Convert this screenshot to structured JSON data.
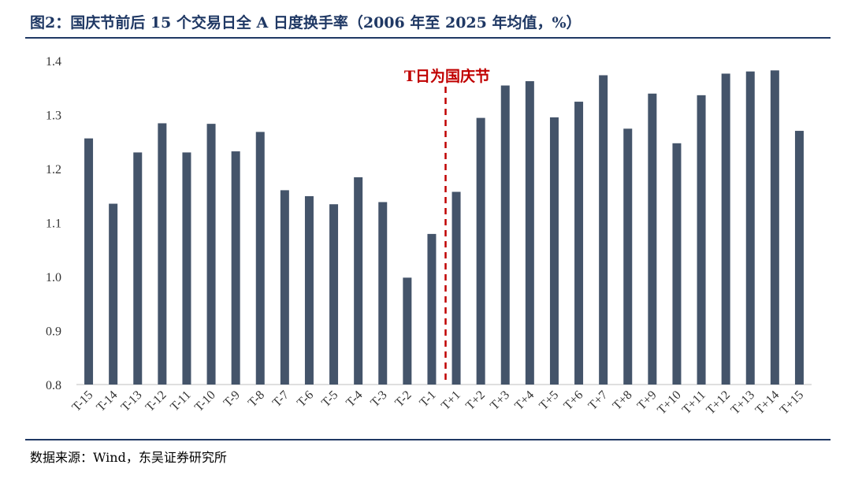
{
  "header": {
    "title": "图2：国庆节前后 15 个交易日全 A 日度换手率（2006 年至 2025 年均值，%）"
  },
  "footer": {
    "source": "数据来源：Wind，东吴证券研究所"
  },
  "chart_data": {
    "type": "bar",
    "categories": [
      "T-15",
      "T-14",
      "T-13",
      "T-12",
      "T-11",
      "T-10",
      "T-9",
      "T-8",
      "T-7",
      "T-6",
      "T-5",
      "T-4",
      "T-3",
      "T-2",
      "T-1",
      "T+1",
      "T+2",
      "T+3",
      "T+4",
      "T+5",
      "T+6",
      "T+7",
      "T+8",
      "T+9",
      "T+10",
      "T+11",
      "T+12",
      "T+13",
      "T+14",
      "T+15"
    ],
    "values": [
      1.256,
      1.135,
      1.23,
      1.284,
      1.23,
      1.283,
      1.232,
      1.268,
      1.16,
      1.149,
      1.134,
      1.184,
      1.138,
      0.998,
      1.079,
      1.157,
      1.294,
      1.354,
      1.362,
      1.295,
      1.324,
      1.373,
      1.274,
      1.339,
      1.247,
      1.336,
      1.376,
      1.38,
      1.382,
      1.27
    ],
    "ylim": [
      0.8,
      1.4
    ],
    "yticks": [
      "0.8",
      "0.9",
      "1.0",
      "1.1",
      "1.2",
      "1.3",
      "1.4"
    ],
    "title": "",
    "xlabel": "",
    "ylabel": "",
    "bar_color": "#44546a",
    "annotation": {
      "text": "T日为国庆节",
      "color": "#c00000",
      "after_category": "T-1"
    },
    "grid": false
  }
}
